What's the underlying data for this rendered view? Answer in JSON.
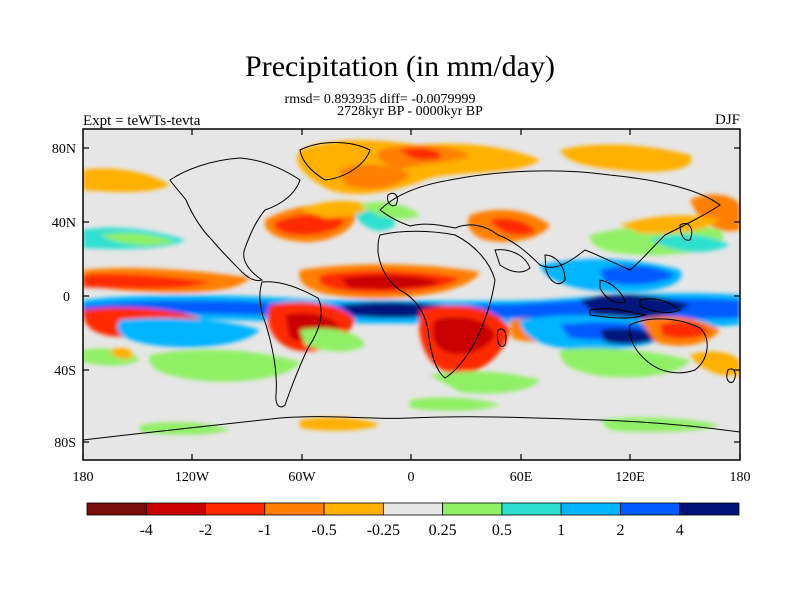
{
  "title": "Precipitation (in mm/day)",
  "subtitle_stats": "rmsd= 0.893935 diff= -0.0079999",
  "subtitle_period": "2728kyr BP - 0000kyr BP",
  "left_label": "Expt = teWTs-tevta",
  "right_label": "DJF",
  "lat_ticks": [
    "80N",
    "40N",
    "0",
    "40S",
    "80S"
  ],
  "lon_ticks": [
    "180",
    "120W",
    "60W",
    "0",
    "60E",
    "120E",
    "180"
  ],
  "colorbar": {
    "labels": [
      "-4",
      "-2",
      "-1",
      "-0.5",
      "-0.25",
      "0.25",
      "0.5",
      "1",
      "2",
      "4"
    ],
    "colors": [
      "#7a0c0c",
      "#c80000",
      "#ff2a00",
      "#ff7f00",
      "#ffb000",
      "#e6e6e6",
      "#8ff065",
      "#2ee0d0",
      "#00b4ff",
      "#005cff",
      "#00127a"
    ]
  }
}
